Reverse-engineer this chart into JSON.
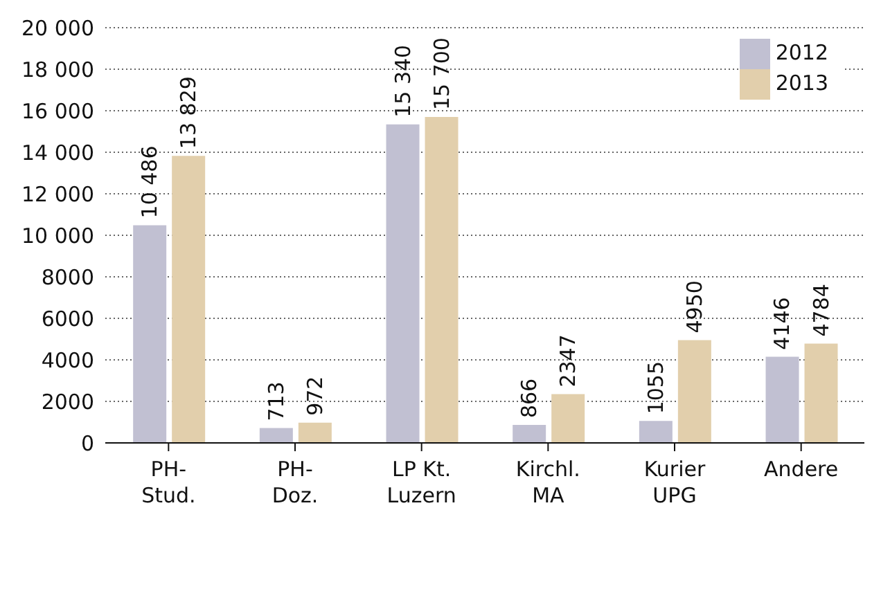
{
  "chart_data": {
    "type": "bar",
    "categories": [
      "PH-\nStud.",
      "PH-\nDoz.",
      "LP Kt.\nLuzern",
      "Kirchl.\nMA",
      "Kurier\nUPG",
      "Andere"
    ],
    "series": [
      {
        "name": "2012",
        "color": "#c1c0d2",
        "values": [
          10486,
          713,
          15340,
          866,
          1055,
          4146
        ],
        "value_labels": [
          "10 486",
          "713",
          "15 340",
          "866",
          "1055",
          "4146"
        ]
      },
      {
        "name": "2013",
        "color": "#e2cfac",
        "values": [
          13829,
          972,
          15700,
          2347,
          4950,
          4784
        ],
        "value_labels": [
          "13 829",
          "972",
          "15 700",
          "2347",
          "4950",
          "4784"
        ]
      }
    ],
    "ylim": [
      0,
      20000
    ],
    "yticks": [
      0,
      2000,
      4000,
      6000,
      8000,
      {
        "value": 10000,
        "label": "10 000"
      },
      {
        "value": 12000,
        "label": "12 000"
      },
      {
        "value": 14000,
        "label": "14 000"
      },
      {
        "value": 16000,
        "label": "16 000"
      },
      {
        "value": 18000,
        "label": "18 000"
      },
      {
        "value": 20000,
        "label": "20 000"
      }
    ],
    "grid": "y",
    "legend": "top right"
  }
}
